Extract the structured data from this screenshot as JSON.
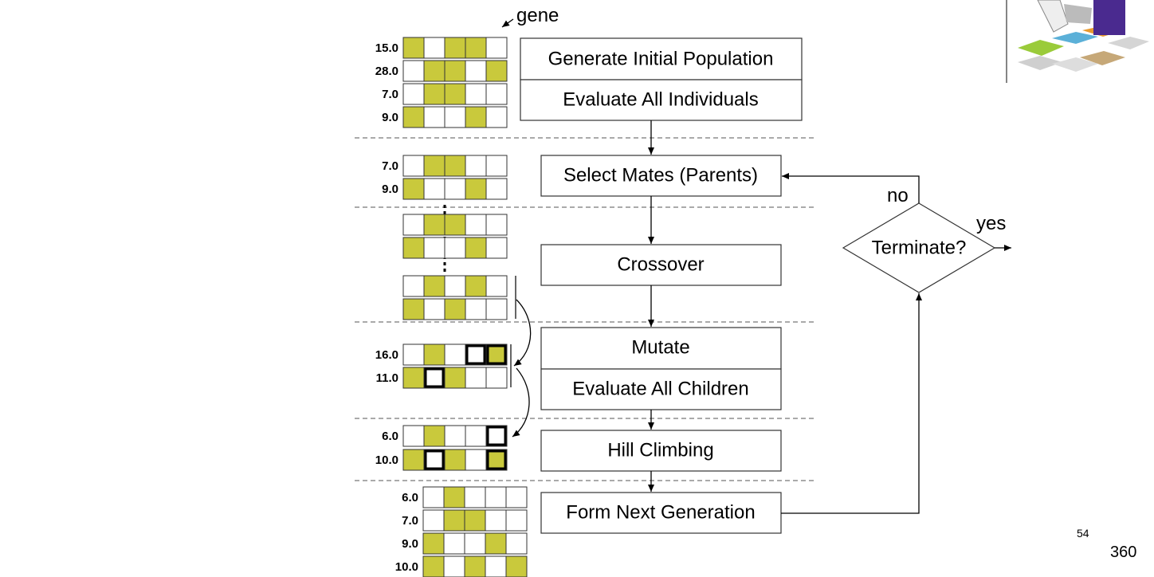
{
  "colors": {
    "gene_on": "#c9c93c",
    "gene_off": "#ffffff",
    "line": "#333333",
    "divider": "#777777"
  },
  "annotations": {
    "gene_label": "gene",
    "no_label": "no",
    "yes_label": "yes"
  },
  "steps": {
    "generate": "Generate Initial Population",
    "evaluate_all": "Evaluate All Individuals",
    "select": "Select Mates (Parents)",
    "crossover": "Crossover",
    "mutate": "Mutate",
    "evaluate_children": "Evaluate All Children",
    "hill": "Hill Climbing",
    "next_gen": "Form Next Generation",
    "terminate": "Terminate?"
  },
  "page": {
    "slide_number": "54",
    "page_number": "360"
  },
  "chromosomes": {
    "population": [
      {
        "fitness": "15.0",
        "genes": [
          1,
          0,
          1,
          1,
          0
        ]
      },
      {
        "fitness": "28.0",
        "genes": [
          0,
          1,
          1,
          0,
          1
        ]
      },
      {
        "fitness": "7.0",
        "genes": [
          0,
          1,
          1,
          0,
          0
        ]
      },
      {
        "fitness": "9.0",
        "genes": [
          1,
          0,
          0,
          1,
          0
        ]
      }
    ],
    "parents": [
      {
        "fitness": "7.0",
        "genes": [
          0,
          1,
          1,
          0,
          0
        ]
      },
      {
        "fitness": "9.0",
        "genes": [
          1,
          0,
          0,
          1,
          0
        ]
      }
    ],
    "crossover_parents": [
      {
        "genes": [
          0,
          1,
          1,
          0,
          0
        ]
      },
      {
        "genes": [
          1,
          0,
          0,
          1,
          0
        ]
      }
    ],
    "crossover_children": [
      {
        "genes": [
          0,
          1,
          0,
          1,
          0
        ]
      },
      {
        "genes": [
          1,
          0,
          1,
          0,
          0
        ]
      }
    ],
    "mutated": [
      {
        "fitness": "16.0",
        "genes": [
          0,
          1,
          0,
          0,
          1
        ],
        "bold": [
          3,
          4
        ]
      },
      {
        "fitness": "11.0",
        "genes": [
          1,
          0,
          1,
          0,
          0
        ],
        "bold": [
          1
        ]
      }
    ],
    "hill_climbed": [
      {
        "fitness": "6.0",
        "genes": [
          0,
          1,
          0,
          0,
          0
        ],
        "bold": [
          4
        ]
      },
      {
        "fitness": "10.0",
        "genes": [
          1,
          0,
          1,
          0,
          1
        ],
        "bold": [
          1,
          4
        ]
      }
    ],
    "next_generation": [
      {
        "fitness": "6.0",
        "genes": [
          0,
          1,
          0,
          0,
          0
        ]
      },
      {
        "fitness": "7.0",
        "genes": [
          0,
          1,
          1,
          0,
          0
        ]
      },
      {
        "fitness": "9.0",
        "genes": [
          1,
          0,
          0,
          1,
          0
        ]
      },
      {
        "fitness": "10.0",
        "genes": [
          1,
          0,
          1,
          0,
          1
        ]
      }
    ]
  }
}
